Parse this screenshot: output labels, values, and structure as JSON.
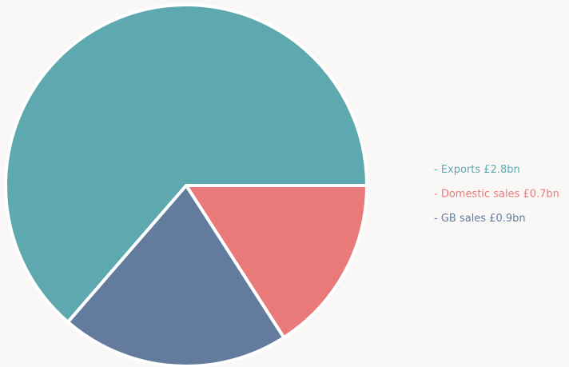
{
  "chart_data": {
    "type": "pie",
    "categories": [
      "Exports",
      "Domestic sales",
      "GB sales"
    ],
    "values": [
      2.8,
      0.7,
      0.9
    ],
    "value_labels": [
      "£2.8bn",
      "£0.7bn",
      "£0.9bn"
    ],
    "colors": [
      "#5ea9b0",
      "#ea7979",
      "#637c9e"
    ]
  }
}
